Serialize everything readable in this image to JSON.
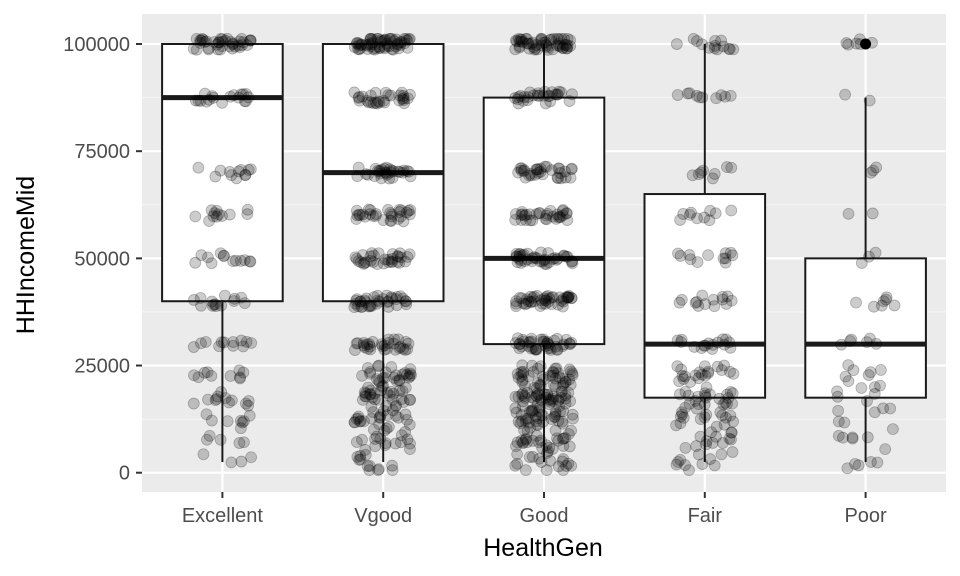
{
  "chart_data": {
    "type": "boxplot",
    "title": "",
    "xlabel": "HealthGen",
    "ylabel": "HHIncomeMid",
    "categories": [
      "Excellent",
      "Vgood",
      "Good",
      "Fair",
      "Poor"
    ],
    "ylim": [
      -4500,
      107000
    ],
    "y_ticks": [
      0,
      25000,
      50000,
      75000,
      100000
    ],
    "y_tick_labels": [
      "0",
      "25000",
      "50000",
      "75000",
      "100000"
    ],
    "boxes": [
      {
        "category": "Excellent",
        "whisker_low": 2500,
        "q1": 40000,
        "median": 87500,
        "q3": 100000,
        "whisker_high": 100000
      },
      {
        "category": "Vgood",
        "whisker_low": 2500,
        "q1": 40000,
        "median": 70000,
        "q3": 100000,
        "whisker_high": 100000
      },
      {
        "category": "Good",
        "whisker_low": 2500,
        "q1": 30000,
        "median": 50000,
        "q3": 87500,
        "whisker_high": 100000
      },
      {
        "category": "Fair",
        "whisker_low": 2500,
        "q1": 17500,
        "median": 30000,
        "q3": 65000,
        "whisker_high": 100000
      },
      {
        "category": "Poor",
        "whisker_low": 2500,
        "q1": 17500,
        "median": 30000,
        "q3": 50000,
        "whisker_high": 87500
      }
    ],
    "outliers": [
      {
        "category": "Poor",
        "values": [
          100000
        ]
      }
    ],
    "jitter_levels": [
      2500,
      7500,
      12500,
      17500,
      22500,
      30000,
      40000,
      50000,
      60000,
      70000,
      87500,
      100000
    ],
    "jitter_counts": {
      "Excellent": [
        4,
        5,
        8,
        12,
        10,
        12,
        14,
        13,
        12,
        12,
        18,
        40
      ],
      "Vgood": [
        12,
        18,
        24,
        30,
        28,
        30,
        36,
        32,
        30,
        30,
        30,
        60
      ],
      "Good": [
        18,
        28,
        36,
        45,
        42,
        42,
        45,
        40,
        32,
        32,
        28,
        55
      ],
      "Fair": [
        10,
        14,
        18,
        22,
        20,
        16,
        14,
        12,
        10,
        8,
        10,
        14
      ],
      "Poor": [
        5,
        6,
        7,
        7,
        7,
        6,
        7,
        3,
        2,
        3,
        2,
        6
      ]
    },
    "grid": true,
    "legend": "none",
    "colors": {
      "panel_background": "#ebebeb",
      "grid_major": "#ffffff",
      "grid_minor": "#f5f5f5",
      "box_fill": "#ffffff",
      "box_line": "#1a1a1a",
      "point": "#000000",
      "tick_text": "#4d4d4d",
      "tick_mark": "#333333",
      "axis_title": "#000000"
    }
  }
}
